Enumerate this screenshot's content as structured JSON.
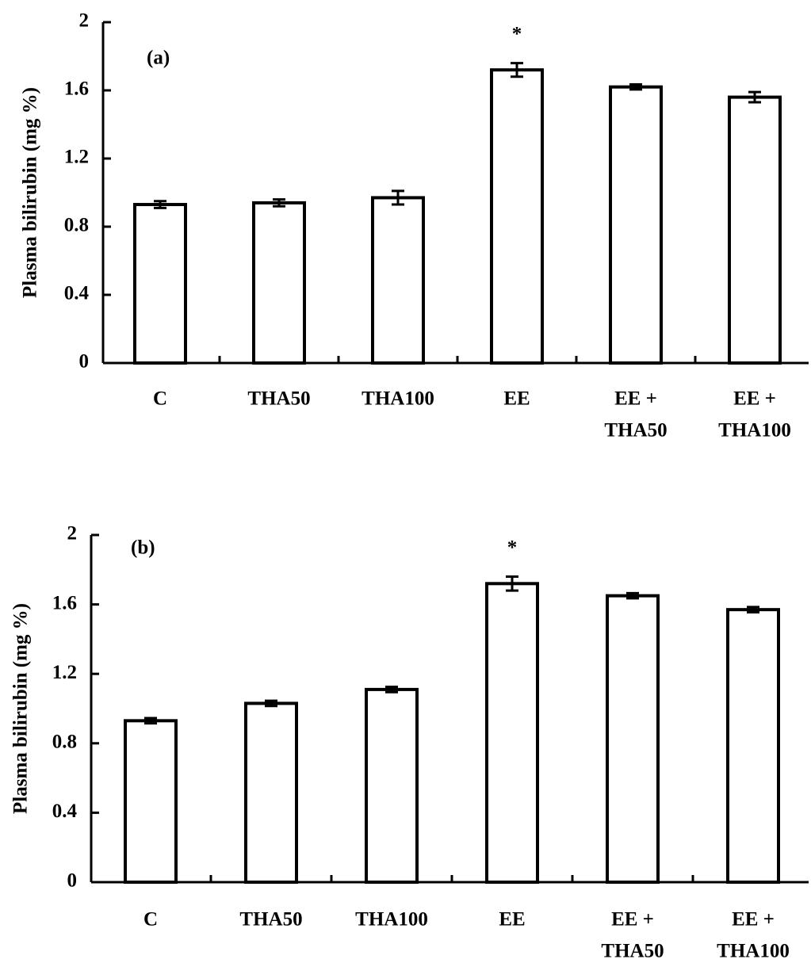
{
  "chart_data": [
    {
      "type": "bar",
      "panel_label": "(a)",
      "y_label": "Plasma bilirubin (mg %)",
      "categories": [
        [
          "C"
        ],
        [
          "THA50"
        ],
        [
          "THA100"
        ],
        [
          "EE"
        ],
        [
          "EE +",
          "THA50"
        ],
        [
          "EE +",
          "THA100"
        ]
      ],
      "values": [
        0.93,
        0.94,
        0.97,
        1.72,
        1.62,
        1.56
      ],
      "errors": [
        0.02,
        0.02,
        0.04,
        0.04,
        0.015,
        0.03
      ],
      "markers": [
        null,
        null,
        null,
        "*",
        null,
        null
      ],
      "color": "#ffffff",
      "ylim": [
        0,
        2
      ],
      "yticks": [
        0,
        0.4,
        0.8,
        1.2,
        1.6,
        2
      ]
    },
    {
      "type": "bar",
      "panel_label": "(b)",
      "y_label": "Plasma bilirubin (mg %)",
      "categories": [
        [
          "C"
        ],
        [
          "THA50"
        ],
        [
          "THA100"
        ],
        [
          "EE"
        ],
        [
          "EE +",
          "THA50"
        ],
        [
          "EE +",
          "THA100"
        ]
      ],
      "values": [
        0.93,
        1.03,
        1.11,
        1.72,
        1.65,
        1.57
      ],
      "errors": [
        0.015,
        0.015,
        0.015,
        0.04,
        0.015,
        0.015
      ],
      "markers": [
        null,
        null,
        null,
        "*",
        null,
        null
      ],
      "color": "#ffffff",
      "ylim": [
        0,
        2
      ],
      "yticks": [
        0,
        0.4,
        0.8,
        1.2,
        1.6,
        2
      ]
    }
  ]
}
